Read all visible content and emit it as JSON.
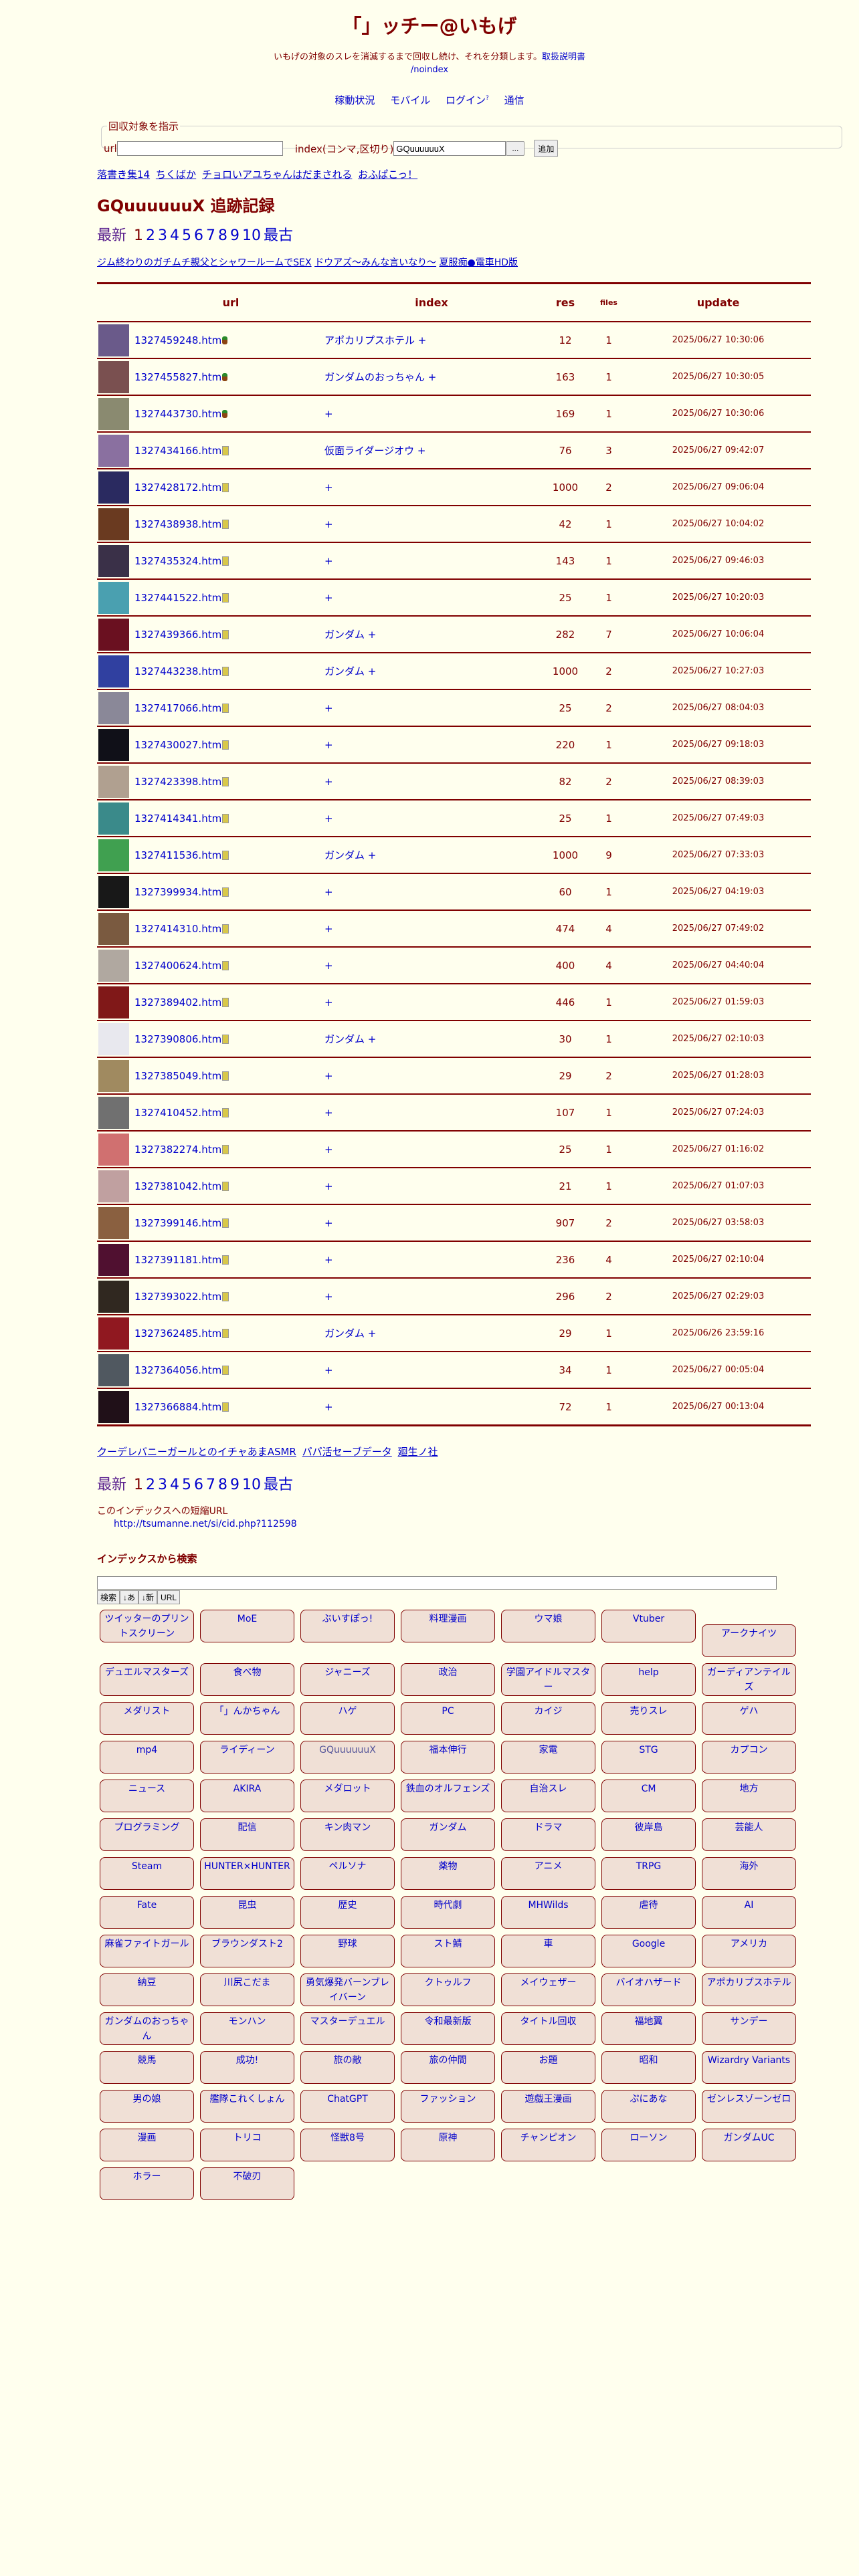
{
  "header": {
    "title": "「」ッチー@いもげ",
    "subtitle": "いもげの対象のスレを消滅するまで回収し続け、それを分類します。",
    "manual_link": "取扱説明書",
    "noindex_link": "/noindex",
    "nav": [
      "稼動状況",
      "モバイル",
      "ログイン",
      "通信"
    ],
    "login_sup": "?"
  },
  "form": {
    "legend": "回収対象を指示",
    "url_label": "url",
    "url_value": "",
    "index_label": "index(コンマ,区切り)",
    "index_value": "GQuuuuuuX",
    "more_button": "...",
    "add_button": "追加"
  },
  "related_top": [
    "落書き集14",
    "ちくばか",
    "チョロいアユちゃんはだまされる",
    "おふぱこっ！"
  ],
  "page_heading": "GQuuuuuuX 追跡記録",
  "pager": {
    "newest": "最新",
    "pages": [
      "1",
      "2",
      "3",
      "4",
      "5",
      "6",
      "7",
      "8",
      "9",
      "10"
    ],
    "current": "1",
    "oldest": "最古"
  },
  "related_mid": [
    "ジム終わりのガチムチ親父とシャワールームでSEX",
    "ドウアズ〜みんな言いなり〜",
    "夏服痴●電車HD版"
  ],
  "table": {
    "headers": {
      "url": "url",
      "index": "index",
      "res": "res",
      "files": "files",
      "update": "update"
    },
    "rows": [
      {
        "url": "1327459248.htm",
        "icon": "plant-icon",
        "index": "アポカリプスホテル +",
        "res": "12",
        "files": "1",
        "update": "2025/06/27 10:30:06",
        "thumb": "#6a5a8a"
      },
      {
        "url": "1327455827.htm",
        "icon": "plant-icon",
        "index": "ガンダムのおっちゃん +",
        "res": "163",
        "files": "1",
        "update": "2025/06/27 10:30:05",
        "thumb": "#7a5050"
      },
      {
        "url": "1327443730.htm",
        "icon": "plant-icon",
        "index": "+",
        "res": "169",
        "files": "1",
        "update": "2025/06/27 10:30:06",
        "thumb": "#8a8a70"
      },
      {
        "url": "1327434166.htm",
        "icon": "file-icon",
        "index": "仮面ライダージオウ +",
        "res": "76",
        "files": "3",
        "update": "2025/06/27 09:42:07",
        "thumb": "#8a70a0"
      },
      {
        "url": "1327428172.htm",
        "icon": "file-icon",
        "index": "+",
        "res": "1000",
        "files": "2",
        "update": "2025/06/27 09:06:04",
        "thumb": "#2a2a60"
      },
      {
        "url": "1327438938.htm",
        "icon": "file-icon",
        "index": "+",
        "res": "42",
        "files": "1",
        "update": "2025/06/27 10:04:02",
        "thumb": "#6a3a20"
      },
      {
        "url": "1327435324.htm",
        "icon": "file-icon",
        "index": "+",
        "res": "143",
        "files": "1",
        "update": "2025/06/27 09:46:03",
        "thumb": "#3a3048"
      },
      {
        "url": "1327441522.htm",
        "icon": "file-icon",
        "index": "+",
        "res": "25",
        "files": "1",
        "update": "2025/06/27 10:20:03",
        "thumb": "#4aa0b0"
      },
      {
        "url": "1327439366.htm",
        "icon": "file-icon",
        "index": "ガンダム +",
        "res": "282",
        "files": "7",
        "update": "2025/06/27 10:06:04",
        "thumb": "#6a1020"
      },
      {
        "url": "1327443238.htm",
        "icon": "file-icon",
        "index": "ガンダム +",
        "res": "1000",
        "files": "2",
        "update": "2025/06/27 10:27:03",
        "thumb": "#3040a0"
      },
      {
        "url": "1327417066.htm",
        "icon": "file-icon",
        "index": "+",
        "res": "25",
        "files": "2",
        "update": "2025/06/27 08:04:03",
        "thumb": "#8a8898"
      },
      {
        "url": "1327430027.htm",
        "icon": "file-icon",
        "index": "+",
        "res": "220",
        "files": "1",
        "update": "2025/06/27 09:18:03",
        "thumb": "#101018"
      },
      {
        "url": "1327423398.htm",
        "icon": "file-icon",
        "index": "+",
        "res": "82",
        "files": "2",
        "update": "2025/06/27 08:39:03",
        "thumb": "#b0a090"
      },
      {
        "url": "1327414341.htm",
        "icon": "file-icon",
        "index": "+",
        "res": "25",
        "files": "1",
        "update": "2025/06/27 07:49:03",
        "thumb": "#3a8a8a"
      },
      {
        "url": "1327411536.htm",
        "icon": "file-icon",
        "index": "ガンダム +",
        "res": "1000",
        "files": "9",
        "update": "2025/06/27 07:33:03",
        "thumb": "#40a050"
      },
      {
        "url": "1327399934.htm",
        "icon": "file-icon",
        "index": "+",
        "res": "60",
        "files": "1",
        "update": "2025/06/27 04:19:03",
        "thumb": "#181818"
      },
      {
        "url": "1327414310.htm",
        "icon": "file-icon",
        "index": "+",
        "res": "474",
        "files": "4",
        "update": "2025/06/27 07:49:02",
        "thumb": "#7a5a40"
      },
      {
        "url": "1327400624.htm",
        "icon": "file-icon",
        "index": "+",
        "res": "400",
        "files": "4",
        "update": "2025/06/27 04:40:04",
        "thumb": "#b0a8a0"
      },
      {
        "url": "1327389402.htm",
        "icon": "file-icon",
        "index": "+",
        "res": "446",
        "files": "1",
        "update": "2025/06/27 01:59:03",
        "thumb": "#801818"
      },
      {
        "url": "1327390806.htm",
        "icon": "file-icon",
        "index": "ガンダム +",
        "res": "30",
        "files": "1",
        "update": "2025/06/27 02:10:03",
        "thumb": "#e8e8ee"
      },
      {
        "url": "1327385049.htm",
        "icon": "file-icon",
        "index": "+",
        "res": "29",
        "files": "2",
        "update": "2025/06/27 01:28:03",
        "thumb": "#a08a60"
      },
      {
        "url": "1327410452.htm",
        "icon": "file-icon",
        "index": "+",
        "res": "107",
        "files": "1",
        "update": "2025/06/27 07:24:03",
        "thumb": "#707070"
      },
      {
        "url": "1327382274.htm",
        "icon": "file-icon",
        "index": "+",
        "res": "25",
        "files": "1",
        "update": "2025/06/27 01:16:02",
        "thumb": "#d07070"
      },
      {
        "url": "1327381042.htm",
        "icon": "file-icon",
        "index": "+",
        "res": "21",
        "files": "1",
        "update": "2025/06/27 01:07:03",
        "thumb": "#c0a0a0"
      },
      {
        "url": "1327399146.htm",
        "icon": "file-icon",
        "index": "+",
        "res": "907",
        "files": "2",
        "update": "2025/06/27 03:58:03",
        "thumb": "#8a6040"
      },
      {
        "url": "1327391181.htm",
        "icon": "file-icon",
        "index": "+",
        "res": "236",
        "files": "4",
        "update": "2025/06/27 02:10:04",
        "thumb": "#501030"
      },
      {
        "url": "1327393022.htm",
        "icon": "file-icon",
        "index": "+",
        "res": "296",
        "files": "2",
        "update": "2025/06/27 02:29:03",
        "thumb": "#302820"
      },
      {
        "url": "1327362485.htm",
        "icon": "file-icon",
        "index": "ガンダム +",
        "res": "29",
        "files": "1",
        "update": "2025/06/26 23:59:16",
        "thumb": "#901820"
      },
      {
        "url": "1327364056.htm",
        "icon": "file-icon",
        "index": "+",
        "res": "34",
        "files": "1",
        "update": "2025/06/27 00:05:04",
        "thumb": "#505860"
      },
      {
        "url": "1327366884.htm",
        "icon": "file-icon",
        "index": "+",
        "res": "72",
        "files": "1",
        "update": "2025/06/27 00:13:04",
        "thumb": "#201018"
      }
    ]
  },
  "related_bottom": [
    "クーデレバニーガールとのイチャあまASMR",
    "パパ活セーブデータ",
    "廻生ノ社"
  ],
  "short_url": {
    "label": "このインデックスへの短縮URL",
    "url": "http://tsumanne.net/si/cid.php?112598"
  },
  "search": {
    "heading": "インデックスから検索",
    "value": "",
    "buttons": [
      "検索",
      "↓あ",
      "↓新",
      "URL"
    ]
  },
  "tags": [
    "ツイッターのプリントスクリーン",
    "MoE",
    "ぶいすぽっ!",
    "料理漫画",
    "ウマ娘",
    "Vtuber",
    "アークナイツ",
    "デュエルマスターズ",
    "食べ物",
    "ジャニーズ",
    "政治",
    "学園アイドルマスター",
    "help",
    "ガーディアンテイルズ",
    "メダリスト",
    "「」んかちゃん",
    "ハゲ",
    "PC",
    "カイジ",
    "売りスレ",
    "ゲハ",
    "mp4",
    "ライディーン",
    "GQuuuuuuX",
    "福本伸行",
    "家電",
    "STG",
    "カプコン",
    "ニュース",
    "AKIRA",
    "メダロット",
    "鉄血のオルフェンズ",
    "自治スレ",
    "CM",
    "地方",
    "プログラミング",
    "配信",
    "キン肉マン",
    "ガンダム",
    "ドラマ",
    "彼岸島",
    "芸能人",
    "Steam",
    "HUNTER×HUNTER",
    "ペルソナ",
    "薬物",
    "アニメ",
    "TRPG",
    "海外",
    "Fate",
    "昆虫",
    "歴史",
    "時代劇",
    "MHWilds",
    "虐待",
    "AI",
    "麻雀ファイトガール",
    "ブラウンダスト2",
    "野球",
    "スト鯖",
    "車",
    "Google",
    "アメリカ",
    "納豆",
    "川尻こだま",
    "勇気爆発バーンブレイバーン",
    "クトゥルフ",
    "メイウェザー",
    "バイオハザード",
    "アポカリプスホテル",
    "ガンダムのおっちゃん",
    "モンハン",
    "マスターデュエル",
    "令和最新版",
    "タイトル回収",
    "福地翼",
    "サンデー",
    "競馬",
    "成功!",
    "旅の敵",
    "旅の仲間",
    "お題",
    "昭和",
    "Wizardry Variants",
    "男の娘",
    "艦隊これくしょん",
    "ChatGPT",
    "ファッション",
    "遊戯王漫画",
    "ぷにあな",
    "ゼンレスゾーンゼロ",
    "漫画",
    "トリコ",
    "怪獣8号",
    "原神",
    "チャンピオン",
    "ローソン",
    "ガンダムUC",
    "ホラー",
    "不破刃"
  ],
  "current_tag": "GQuuuuuuX",
  "colors": {
    "background": "#ffffee",
    "accent": "#800000",
    "link": "#0000cc",
    "tag_bg": "#f0e0d6"
  }
}
